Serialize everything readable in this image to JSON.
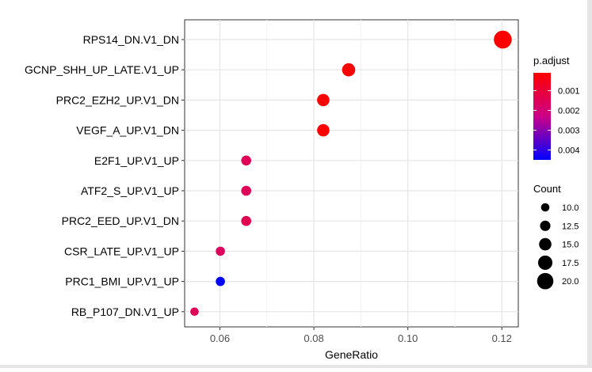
{
  "chart_data": {
    "type": "scatter",
    "xlabel": "GeneRatio",
    "x_ticks": [
      "0.06",
      "0.08",
      "0.10",
      "0.12"
    ],
    "x_tick_values": [
      0.06,
      0.08,
      0.1,
      0.12
    ],
    "xlim": [
      0.0525,
      0.1235
    ],
    "grid": true,
    "categories": [
      "RPS14_DN.V1_DN",
      "GCNP_SHH_UP_LATE.V1_UP",
      "PRC2_EZH2_UP.V1_DN",
      "VEGF_A_UP.V1_DN",
      "E2F1_UP.V1_UP",
      "ATF2_S_UP.V1_UP",
      "PRC2_EED_UP.V1_DN",
      "CSR_LATE_UP.V1_UP",
      "PRC1_BMI_UP.V1_UP",
      "RB_P107_DN.V1_UP"
    ],
    "points": [
      {
        "term": "RPS14_DN.V1_DN",
        "gene_ratio": 0.1202,
        "count": 22,
        "p_adjust": 0.0001
      },
      {
        "term": "GCNP_SHH_UP_LATE.V1_UP",
        "gene_ratio": 0.0874,
        "count": 16,
        "p_adjust": 0.0001
      },
      {
        "term": "PRC2_EZH2_UP.V1_DN",
        "gene_ratio": 0.082,
        "count": 15,
        "p_adjust": 0.0001
      },
      {
        "term": "VEGF_A_UP.V1_DN",
        "gene_ratio": 0.082,
        "count": 15,
        "p_adjust": 0.0001
      },
      {
        "term": "E2F1_UP.V1_UP",
        "gene_ratio": 0.0656,
        "count": 12,
        "p_adjust": 0.0015
      },
      {
        "term": "ATF2_S_UP.V1_UP",
        "gene_ratio": 0.0656,
        "count": 12,
        "p_adjust": 0.0015
      },
      {
        "term": "PRC2_EED_UP.V1_DN",
        "gene_ratio": 0.0656,
        "count": 12,
        "p_adjust": 0.0014
      },
      {
        "term": "CSR_LATE_UP.V1_UP",
        "gene_ratio": 0.0601,
        "count": 11,
        "p_adjust": 0.0016
      },
      {
        "term": "PRC1_BMI_UP.V1_UP",
        "gene_ratio": 0.0601,
        "count": 11,
        "p_adjust": 0.0045
      },
      {
        "term": "RB_P107_DN.V1_UP",
        "gene_ratio": 0.0546,
        "count": 10,
        "p_adjust": 0.0015
      }
    ],
    "color_legend": {
      "title": "p.adjust",
      "ticks": [
        "0.001",
        "0.002",
        "0.003",
        "0.004"
      ],
      "tick_values": [
        0.001,
        0.002,
        0.003,
        0.004
      ],
      "range": [
        0.0001,
        0.0045
      ],
      "low_color": "#ff0000",
      "high_color": "#0000ff"
    },
    "size_legend": {
      "title": "Count",
      "labels": [
        "10.0",
        "12.5",
        "15.0",
        "17.5",
        "20.0"
      ],
      "values": [
        10,
        12.5,
        15,
        17.5,
        20
      ],
      "placement": "right"
    }
  }
}
